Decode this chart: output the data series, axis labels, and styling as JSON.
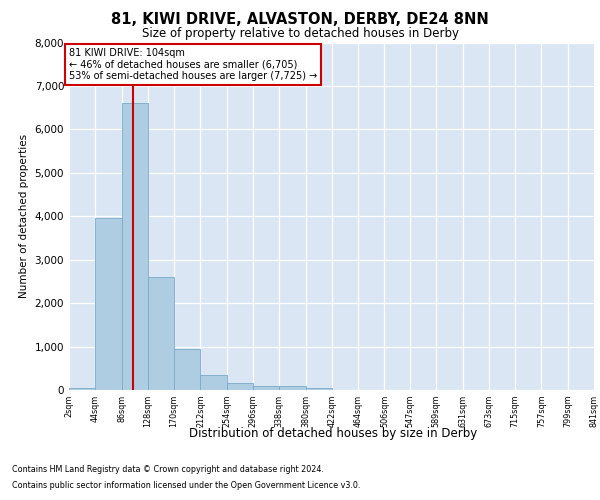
{
  "title": "81, KIWI DRIVE, ALVASTON, DERBY, DE24 8NN",
  "subtitle": "Size of property relative to detached houses in Derby",
  "xlabel": "Distribution of detached houses by size in Derby",
  "ylabel": "Number of detached properties",
  "bar_color": "#aecde3",
  "bar_edge_color": "#7aaac8",
  "background_color": "#dae6f3",
  "grid_color": "#ffffff",
  "vline_color": "#cc0000",
  "bins": [
    2,
    44,
    86,
    128,
    170,
    212,
    254,
    296,
    338,
    380,
    422,
    464,
    506,
    547,
    589,
    631,
    673,
    715,
    757,
    799,
    841
  ],
  "bar_values": [
    50,
    3950,
    6600,
    2600,
    950,
    350,
    150,
    100,
    100,
    50,
    0,
    0,
    0,
    0,
    0,
    0,
    0,
    0,
    0,
    0
  ],
  "property_size": 104,
  "annotation_line1": "81 KIWI DRIVE: 104sqm",
  "annotation_line2": "← 46% of detached houses are smaller (6,705)",
  "annotation_line3": "53% of semi-detached houses are larger (7,725) →",
  "ylim_max": 8000,
  "yticks": [
    0,
    1000,
    2000,
    3000,
    4000,
    5000,
    6000,
    7000,
    8000
  ],
  "footnote1": "Contains HM Land Registry data © Crown copyright and database right 2024.",
  "footnote2": "Contains public sector information licensed under the Open Government Licence v3.0."
}
